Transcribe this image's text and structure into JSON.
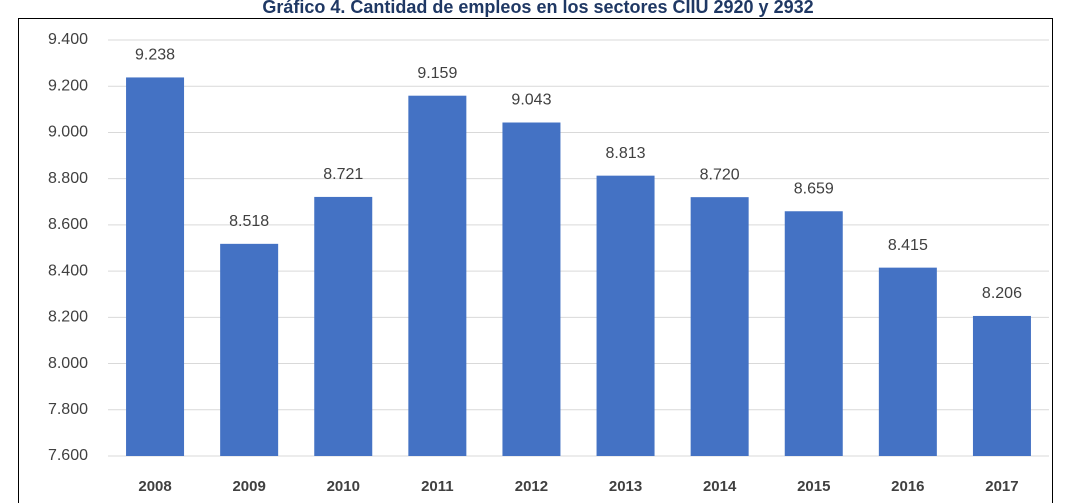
{
  "chart_data": {
    "type": "bar",
    "title": "Gráfico 4. Cantidad de empleos en los sectores CIIU 2920 y 2932",
    "categories": [
      "2008",
      "2009",
      "2010",
      "2011",
      "2012",
      "2013",
      "2014",
      "2015",
      "2016",
      "2017"
    ],
    "values": [
      9238,
      8518,
      8721,
      9159,
      9043,
      8813,
      8720,
      8659,
      8415,
      8206
    ],
    "value_labels": [
      "9.238",
      "8.518",
      "8.721",
      "9.159",
      "9.043",
      "8.813",
      "8.720",
      "8.659",
      "8.415",
      "8.206"
    ],
    "color": "#4472c4",
    "ylim": [
      7600,
      9400
    ],
    "yticks": [
      {
        "value": 7600,
        "label": "7.600"
      },
      {
        "value": 7800,
        "label": "7.800"
      },
      {
        "value": 8000,
        "label": "8.000"
      },
      {
        "value": 8200,
        "label": "8.200"
      },
      {
        "value": 8400,
        "label": "8.400"
      },
      {
        "value": 8600,
        "label": "8.600"
      },
      {
        "value": 8800,
        "label": "8.800"
      },
      {
        "value": 9000,
        "label": "9.000"
      },
      {
        "value": 9200,
        "label": "9.200"
      },
      {
        "value": 9400,
        "label": "9.400"
      }
    ],
    "grid": true
  }
}
